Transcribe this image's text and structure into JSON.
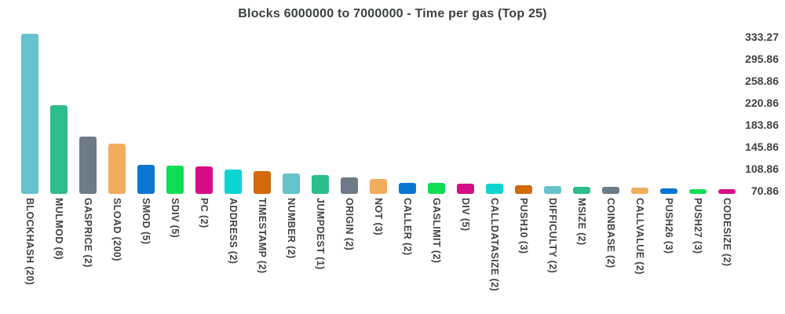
{
  "chart_data": {
    "type": "bar",
    "title": "Blocks 6000000 to 7000000 - Time per gas (Top 25)",
    "categories": [
      "BLOCKHASH (20)",
      "MULMOD (8)",
      "GASPRICE (2)",
      "SLOAD (200)",
      "SMOD (5)",
      "SDIV (5)",
      "PC (2)",
      "ADDRESS (2)",
      "TIMESTAMP (2)",
      "NUMBER (2)",
      "JUMPDEST (1)",
      "ORIGIN (2)",
      "NOT (3)",
      "CALLER (2)",
      "GASLIMIT (2)",
      "DIV (5)",
      "CALLDATASIZE (2)",
      "PUSH10 (3)",
      "DIFFICULTY (2)",
      "MSIZE (2)",
      "COINBASE (2)",
      "CALLVALUE (2)",
      "PUSH26 (3)",
      "PUSH27 (3)",
      "CODESIZE (2)"
    ],
    "values": [
      333.27,
      212.7,
      159.7,
      147.7,
      111.9,
      110.6,
      109.3,
      104.6,
      101.3,
      97.3,
      94.7,
      90.7,
      88.1,
      81.4,
      81.0,
      80.3,
      79.7,
      77.4,
      76.1,
      74.8,
      74.4,
      73.4,
      72.1,
      71.5,
      70.86
    ],
    "bar_colors_cycle": [
      "#66c2cb",
      "#2ebd8d",
      "#6d7a87",
      "#f0ad5e",
      "#0b76d2",
      "#0ddd55",
      "#d60d84",
      "#0cd4cf",
      "#d2690a"
    ],
    "yticks": [
      "333.27",
      "295.86",
      "258.86",
      "220.86",
      "183.86",
      "145.86",
      "108.86",
      "70.86"
    ],
    "ylim": [
      62.9,
      333.27
    ],
    "xlabel": "",
    "ylabel": "",
    "grid": false,
    "legend": "none",
    "yaxis_side": "right"
  },
  "colors": {
    "background": "#ffffff",
    "title_text": "#3c4043",
    "axis_text": "#424242"
  }
}
